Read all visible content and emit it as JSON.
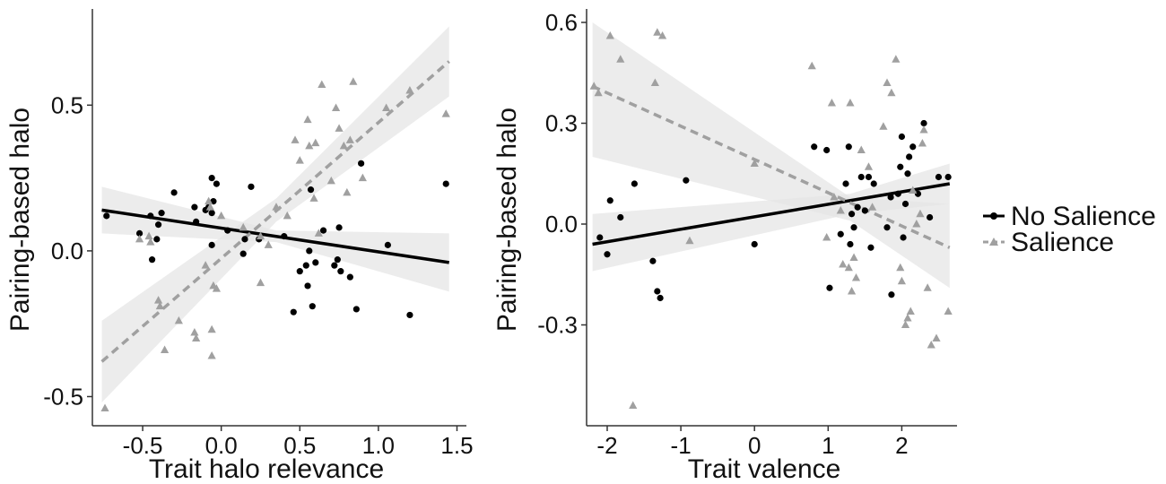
{
  "legend": {
    "entries": [
      {
        "label": "No Salience",
        "color": "#000000",
        "marker": "circle",
        "line": "solid"
      },
      {
        "label": "Salience",
        "color": "#a0a0a0",
        "marker": "triangle",
        "line": "dashed"
      }
    ]
  },
  "colors": {
    "no_salience": "#000000",
    "salience": "#a0a0a0",
    "ribbon": "#e6e6e6",
    "axis": "#333333"
  },
  "chart_data": [
    {
      "type": "scatter",
      "xlabel": "Trait halo relevance",
      "ylabel": "Pairing-based halo",
      "xlim": [
        -0.82,
        1.56
      ],
      "ylim": [
        -0.6,
        0.83
      ],
      "xticks": [
        -0.5,
        0.0,
        0.5,
        1.0,
        1.5
      ],
      "xtick_labels": [
        "-0.5",
        "0.0",
        "0.5",
        "1.0",
        "1.5"
      ],
      "yticks": [
        -0.5,
        0.0,
        0.5
      ],
      "ytick_labels": [
        "-0.5",
        "0.0",
        "0.5"
      ],
      "grid": false,
      "legend_position": "right",
      "series": [
        {
          "name": "No Salience",
          "marker": "circle",
          "points": [
            [
              -0.73,
              0.12
            ],
            [
              -0.52,
              0.06
            ],
            [
              -0.45,
              0.12
            ],
            [
              -0.44,
              -0.03
            ],
            [
              -0.41,
              0.04
            ],
            [
              -0.4,
              0.09
            ],
            [
              -0.38,
              0.13
            ],
            [
              -0.3,
              0.2
            ],
            [
              -0.17,
              0.15
            ],
            [
              -0.16,
              0.1
            ],
            [
              -0.1,
              0.14
            ],
            [
              -0.08,
              0.15
            ],
            [
              -0.06,
              0.13
            ],
            [
              -0.06,
              0.25
            ],
            [
              -0.05,
              0.17
            ],
            [
              -0.06,
              0.02
            ],
            [
              -0.03,
              0.23
            ],
            [
              0.04,
              0.07
            ],
            [
              0.14,
              -0.01
            ],
            [
              0.15,
              0.04
            ],
            [
              0.19,
              0.22
            ],
            [
              0.24,
              0.04
            ],
            [
              0.4,
              0.05
            ],
            [
              0.46,
              -0.21
            ],
            [
              0.5,
              -0.07
            ],
            [
              0.54,
              -0.05
            ],
            [
              0.55,
              -0.12
            ],
            [
              0.56,
              0.0
            ],
            [
              0.57,
              0.21
            ],
            [
              0.58,
              -0.19
            ],
            [
              0.6,
              -0.04
            ],
            [
              0.65,
              0.07
            ],
            [
              0.72,
              -0.05
            ],
            [
              0.74,
              -0.03
            ],
            [
              0.75,
              0.08
            ],
            [
              0.76,
              -0.07
            ],
            [
              0.82,
              -0.09
            ],
            [
              0.86,
              -0.2
            ],
            [
              0.89,
              0.3
            ],
            [
              1.06,
              0.02
            ],
            [
              1.2,
              -0.22
            ],
            [
              1.43,
              0.23
            ]
          ],
          "fit": {
            "x": [
              -0.76,
              1.45
            ],
            "y": [
              0.14,
              -0.04
            ],
            "ci_low": [
              0.06,
              -0.14
            ],
            "ci_high": [
              0.22,
              0.06
            ],
            "ci_mid_x": 0.35,
            "ci_mid": [
              0.03,
              0.07
            ]
          }
        },
        {
          "name": "Salience",
          "marker": "triangle",
          "points": [
            [
              -0.74,
              -0.54
            ],
            [
              -0.52,
              0.04
            ],
            [
              -0.46,
              0.05
            ],
            [
              -0.45,
              0.03
            ],
            [
              -0.4,
              -0.17
            ],
            [
              -0.39,
              -0.19
            ],
            [
              -0.36,
              -0.34
            ],
            [
              -0.27,
              -0.24
            ],
            [
              -0.17,
              -0.28
            ],
            [
              -0.16,
              -0.3
            ],
            [
              -0.1,
              -0.05
            ],
            [
              -0.08,
              0.17
            ],
            [
              -0.07,
              0.15
            ],
            [
              -0.06,
              -0.27
            ],
            [
              -0.06,
              -0.36
            ],
            [
              -0.05,
              -0.12
            ],
            [
              -0.03,
              -0.13
            ],
            [
              0.0,
              0.12
            ],
            [
              0.14,
              0.08
            ],
            [
              0.25,
              0.05
            ],
            [
              0.25,
              -0.11
            ],
            [
              0.3,
              0.02
            ],
            [
              0.35,
              0.15
            ],
            [
              0.42,
              0.12
            ],
            [
              0.47,
              0.38
            ],
            [
              0.5,
              0.31
            ],
            [
              0.55,
              0.45
            ],
            [
              0.56,
              0.36
            ],
            [
              0.59,
              0.18
            ],
            [
              0.6,
              0.37
            ],
            [
              0.62,
              0.06
            ],
            [
              0.64,
              0.57
            ],
            [
              0.7,
              0.24
            ],
            [
              0.73,
              0.49
            ],
            [
              0.75,
              0.42
            ],
            [
              0.78,
              0.36
            ],
            [
              0.8,
              0.2
            ],
            [
              0.82,
              0.38
            ],
            [
              0.84,
              0.58
            ],
            [
              0.9,
              0.25
            ],
            [
              1.05,
              0.49
            ],
            [
              1.2,
              0.55
            ],
            [
              1.43,
              0.47
            ]
          ],
          "fit": {
            "x": [
              -0.76,
              1.45
            ],
            "y": [
              -0.38,
              0.65
            ],
            "ci_low": [
              -0.52,
              0.53
            ],
            "ci_high": [
              -0.24,
              0.77
            ],
            "ci_mid_x": 0.35,
            "ci_mid": [
              0.1,
              0.18
            ]
          }
        }
      ]
    },
    {
      "type": "scatter",
      "xlabel": "Trait valence",
      "ylabel": "Pairing-based halo",
      "xlim": [
        -2.28,
        2.75
      ],
      "ylim": [
        -0.6,
        0.64
      ],
      "xticks": [
        -2,
        -1,
        0,
        1,
        2
      ],
      "xtick_labels": [
        "-2",
        "-1",
        "0",
        "1",
        "2"
      ],
      "yticks": [
        -0.3,
        0.0,
        0.3,
        0.6
      ],
      "ytick_labels": [
        "-0.3",
        "0.0",
        "0.3",
        "0.6"
      ],
      "grid": false,
      "legend_position": "right",
      "series": [
        {
          "name": "No Salience",
          "marker": "circle",
          "points": [
            [
              -2.1,
              -0.04
            ],
            [
              -2.0,
              -0.09
            ],
            [
              -1.96,
              0.07
            ],
            [
              -1.82,
              0.02
            ],
            [
              -1.63,
              0.12
            ],
            [
              -1.38,
              -0.11
            ],
            [
              -1.32,
              -0.2
            ],
            [
              -1.28,
              -0.22
            ],
            [
              -0.93,
              0.13
            ],
            [
              0.0,
              -0.06
            ],
            [
              0.81,
              0.23
            ],
            [
              0.98,
              0.22
            ],
            [
              1.02,
              -0.19
            ],
            [
              1.17,
              -0.03
            ],
            [
              1.24,
              0.12
            ],
            [
              1.28,
              0.23
            ],
            [
              1.3,
              -0.06
            ],
            [
              1.32,
              0.03
            ],
            [
              1.35,
              -0.01
            ],
            [
              1.4,
              0.05
            ],
            [
              1.45,
              0.14
            ],
            [
              1.5,
              0.04
            ],
            [
              1.55,
              0.14
            ],
            [
              1.58,
              -0.07
            ],
            [
              1.62,
              0.12
            ],
            [
              1.8,
              -0.01
            ],
            [
              1.85,
              0.08
            ],
            [
              1.86,
              -0.21
            ],
            [
              1.95,
              0.09
            ],
            [
              1.98,
              0.17
            ],
            [
              2.0,
              0.26
            ],
            [
              2.02,
              -0.04
            ],
            [
              2.05,
              0.06
            ],
            [
              2.08,
              0.15
            ],
            [
              2.1,
              0.2
            ],
            [
              2.15,
              0.23
            ],
            [
              2.22,
              0.09
            ],
            [
              2.3,
              0.3
            ],
            [
              2.38,
              0.02
            ],
            [
              2.5,
              0.14
            ],
            [
              2.63,
              0.14
            ]
          ],
          "fit": {
            "x": [
              -2.2,
              2.65
            ],
            "y": [
              -0.06,
              0.12
            ],
            "ci_low": [
              -0.14,
              0.06
            ],
            "ci_high": [
              0.03,
              0.18
            ],
            "ci_mid_x": 1.3,
            "ci_mid": [
              0.03,
              0.09
            ]
          }
        },
        {
          "name": "Salience",
          "marker": "triangle",
          "points": [
            [
              -2.18,
              0.41
            ],
            [
              -2.12,
              0.39
            ],
            [
              -1.96,
              0.56
            ],
            [
              -1.82,
              0.49
            ],
            [
              -1.65,
              -0.54
            ],
            [
              -1.32,
              0.57
            ],
            [
              -1.25,
              0.56
            ],
            [
              -1.35,
              0.42
            ],
            [
              -0.88,
              -0.05
            ],
            [
              0.0,
              0.18
            ],
            [
              0.78,
              0.47
            ],
            [
              0.98,
              -0.04
            ],
            [
              1.05,
              0.36
            ],
            [
              1.08,
              0.08
            ],
            [
              1.17,
              0.04
            ],
            [
              1.2,
              -0.12
            ],
            [
              1.28,
              -0.13
            ],
            [
              1.3,
              0.36
            ],
            [
              1.32,
              -0.2
            ],
            [
              1.35,
              -0.1
            ],
            [
              1.38,
              -0.16
            ],
            [
              1.45,
              0.22
            ],
            [
              1.55,
              0.17
            ],
            [
              1.6,
              0.05
            ],
            [
              1.75,
              0.29
            ],
            [
              1.8,
              0.42
            ],
            [
              1.86,
              0.39
            ],
            [
              1.92,
              0.49
            ],
            [
              1.98,
              -0.13
            ],
            [
              2.0,
              -0.17
            ],
            [
              2.05,
              -0.3
            ],
            [
              2.08,
              -0.28
            ],
            [
              2.12,
              -0.26
            ],
            [
              2.15,
              0.1
            ],
            [
              2.2,
              0.0
            ],
            [
              2.25,
              0.03
            ],
            [
              2.28,
              0.24
            ],
            [
              2.3,
              0.28
            ],
            [
              2.35,
              -0.19
            ],
            [
              2.4,
              -0.36
            ],
            [
              2.47,
              -0.34
            ],
            [
              2.63,
              -0.26
            ]
          ],
          "fit": {
            "x": [
              -2.2,
              2.65
            ],
            "y": [
              0.41,
              -0.07
            ],
            "ci_low": [
              0.2,
              -0.19
            ],
            "ci_high": [
              0.6,
              0.06
            ],
            "ci_mid_x": 1.3,
            "ci_mid": [
              0.01,
              0.08
            ]
          }
        }
      ]
    }
  ]
}
